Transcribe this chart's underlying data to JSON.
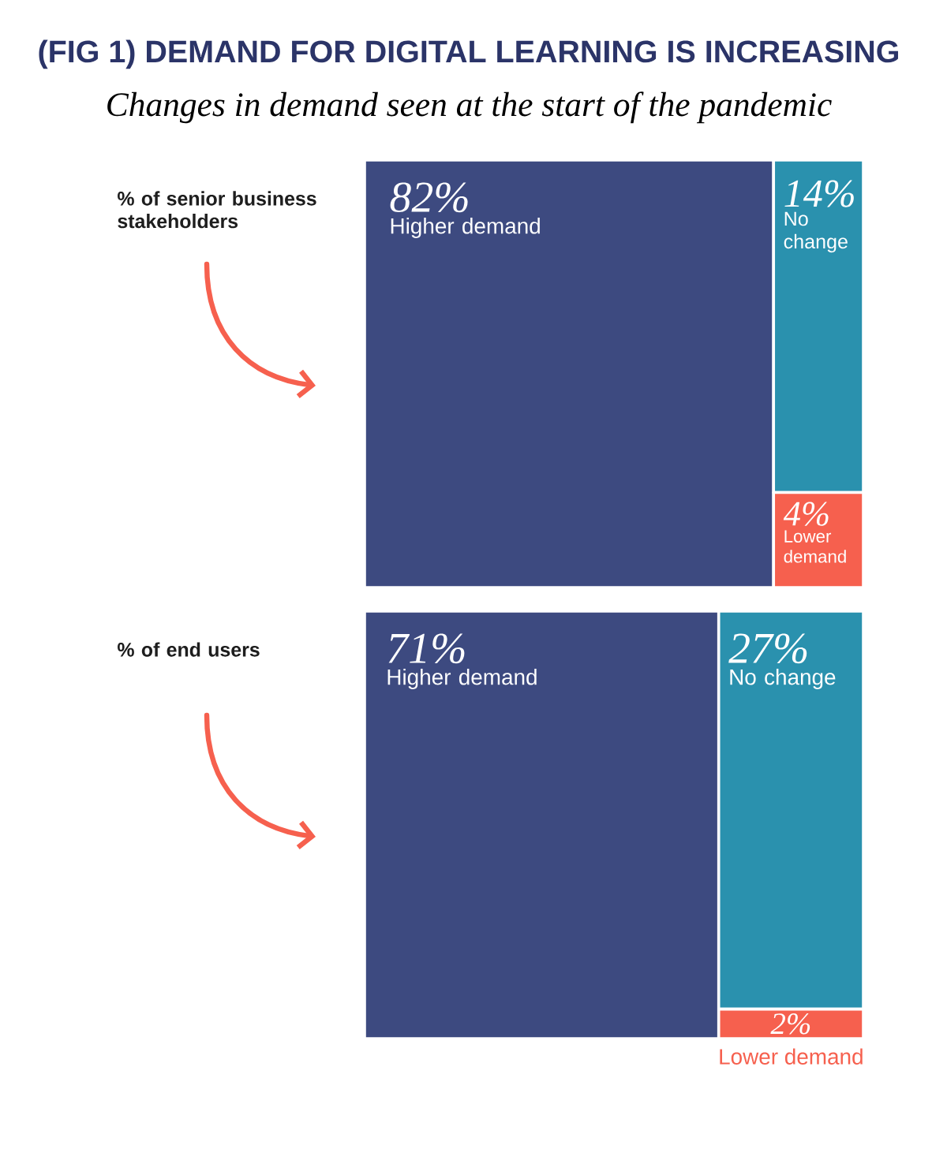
{
  "chart_data": [
    {
      "type": "other",
      "title": "(FIG 1) DEMAND FOR DIGITAL LEARNING IS INCREASING",
      "subtitle": "Changes in demand seen at the start of the pandemic",
      "ylabel": "% of senior business stakeholders",
      "categories": [
        "Higher demand",
        "No change",
        "Lower demand"
      ],
      "values": [
        82,
        14,
        4
      ],
      "value_labels": [
        "82%",
        "14%",
        "4%"
      ],
      "colors": [
        "#3d4a80",
        "#2a91ae",
        "#f6604e"
      ]
    },
    {
      "type": "other",
      "ylabel": "% of end users",
      "categories": [
        "Higher demand",
        "No change",
        "Lower demand"
      ],
      "values": [
        71,
        27,
        2
      ],
      "value_labels": [
        "71%",
        "27%",
        "2%"
      ],
      "colors": [
        "#3d4a80",
        "#2a91ae",
        "#f6604e"
      ]
    }
  ]
}
